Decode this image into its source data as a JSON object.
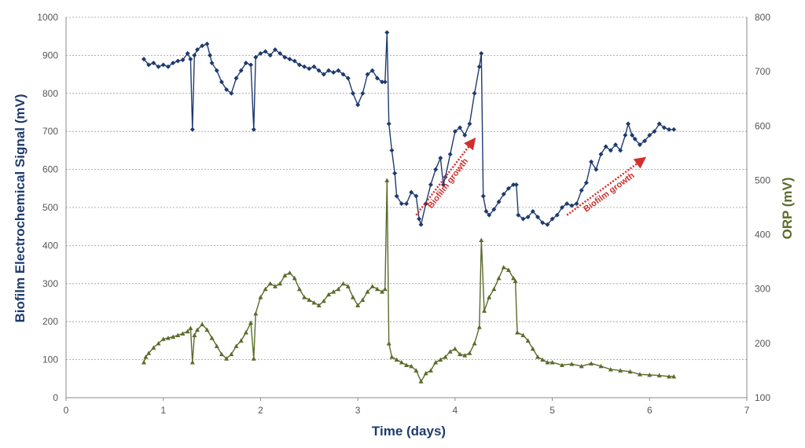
{
  "chart_data": {
    "type": "line",
    "xlabel": "Time (days)",
    "ylabel_left": "Biofilm Electrochemical Signal (mV)",
    "ylabel_right": "ORP (mV)",
    "xlim": [
      0,
      7
    ],
    "ylim_left": [
      0,
      1000
    ],
    "ylim_right": [
      100,
      800
    ],
    "x_ticks": [
      "0",
      "1",
      "2",
      "3",
      "4",
      "5",
      "6",
      "7"
    ],
    "y_left_ticks": [
      "0",
      "100",
      "200",
      "300",
      "400",
      "500",
      "600",
      "700",
      "800",
      "900",
      "1000"
    ],
    "y_right_ticks": [
      "100",
      "200",
      "300",
      "400",
      "500",
      "600",
      "700",
      "800"
    ],
    "grid": "horizontal",
    "colors": {
      "left_series": "#1f3b6e",
      "right_series": "#5b6b2a",
      "annotation": "#d32f2f"
    },
    "annotations": [
      {
        "text": "Biofilm growth",
        "from": [
          3.6,
          480
        ],
        "to": [
          4.2,
          680
        ]
      },
      {
        "text": "Biofilm growth",
        "from": [
          5.15,
          480
        ],
        "to": [
          5.95,
          630
        ]
      }
    ],
    "series": [
      {
        "axis": "left",
        "marker": "diamond",
        "points": [
          [
            0.8,
            890
          ],
          [
            0.85,
            875
          ],
          [
            0.9,
            880
          ],
          [
            0.95,
            870
          ],
          [
            1.0,
            875
          ],
          [
            1.05,
            870
          ],
          [
            1.1,
            880
          ],
          [
            1.15,
            885
          ],
          [
            1.2,
            888
          ],
          [
            1.25,
            905
          ],
          [
            1.28,
            890
          ],
          [
            1.3,
            705
          ],
          [
            1.32,
            900
          ],
          [
            1.35,
            915
          ],
          [
            1.4,
            925
          ],
          [
            1.45,
            930
          ],
          [
            1.48,
            900
          ],
          [
            1.5,
            880
          ],
          [
            1.55,
            860
          ],
          [
            1.6,
            830
          ],
          [
            1.65,
            810
          ],
          [
            1.7,
            800
          ],
          [
            1.75,
            840
          ],
          [
            1.8,
            860
          ],
          [
            1.85,
            880
          ],
          [
            1.9,
            875
          ],
          [
            1.93,
            705
          ],
          [
            1.95,
            895
          ],
          [
            2.0,
            905
          ],
          [
            2.05,
            910
          ],
          [
            2.1,
            900
          ],
          [
            2.15,
            915
          ],
          [
            2.2,
            905
          ],
          [
            2.25,
            895
          ],
          [
            2.3,
            890
          ],
          [
            2.35,
            885
          ],
          [
            2.4,
            875
          ],
          [
            2.45,
            870
          ],
          [
            2.5,
            865
          ],
          [
            2.55,
            870
          ],
          [
            2.6,
            860
          ],
          [
            2.65,
            850
          ],
          [
            2.7,
            860
          ],
          [
            2.75,
            855
          ],
          [
            2.8,
            860
          ],
          [
            2.85,
            850
          ],
          [
            2.9,
            840
          ],
          [
            2.95,
            800
          ],
          [
            3.0,
            770
          ],
          [
            3.05,
            800
          ],
          [
            3.1,
            850
          ],
          [
            3.15,
            860
          ],
          [
            3.2,
            840
          ],
          [
            3.25,
            830
          ],
          [
            3.28,
            830
          ],
          [
            3.3,
            960
          ],
          [
            3.32,
            720
          ],
          [
            3.35,
            650
          ],
          [
            3.38,
            590
          ],
          [
            3.4,
            530
          ],
          [
            3.45,
            510
          ],
          [
            3.5,
            510
          ],
          [
            3.55,
            540
          ],
          [
            3.6,
            530
          ],
          [
            3.63,
            470
          ],
          [
            3.65,
            455
          ],
          [
            3.7,
            510
          ],
          [
            3.75,
            560
          ],
          [
            3.8,
            600
          ],
          [
            3.85,
            630
          ],
          [
            3.88,
            560
          ],
          [
            3.9,
            580
          ],
          [
            3.95,
            640
          ],
          [
            4.0,
            700
          ],
          [
            4.05,
            710
          ],
          [
            4.1,
            690
          ],
          [
            4.15,
            720
          ],
          [
            4.2,
            800
          ],
          [
            4.25,
            870
          ],
          [
            4.27,
            905
          ],
          [
            4.29,
            530
          ],
          [
            4.32,
            490
          ],
          [
            4.35,
            480
          ],
          [
            4.4,
            495
          ],
          [
            4.45,
            515
          ],
          [
            4.5,
            535
          ],
          [
            4.55,
            550
          ],
          [
            4.6,
            560
          ],
          [
            4.63,
            560
          ],
          [
            4.65,
            480
          ],
          [
            4.7,
            470
          ],
          [
            4.75,
            475
          ],
          [
            4.8,
            490
          ],
          [
            4.85,
            475
          ],
          [
            4.9,
            460
          ],
          [
            4.95,
            455
          ],
          [
            5.0,
            470
          ],
          [
            5.05,
            480
          ],
          [
            5.1,
            500
          ],
          [
            5.15,
            510
          ],
          [
            5.2,
            505
          ],
          [
            5.25,
            510
          ],
          [
            5.3,
            545
          ],
          [
            5.35,
            565
          ],
          [
            5.4,
            620
          ],
          [
            5.45,
            600
          ],
          [
            5.5,
            640
          ],
          [
            5.55,
            660
          ],
          [
            5.6,
            650
          ],
          [
            5.65,
            665
          ],
          [
            5.7,
            650
          ],
          [
            5.75,
            690
          ],
          [
            5.78,
            720
          ],
          [
            5.82,
            690
          ],
          [
            5.85,
            680
          ],
          [
            5.9,
            665
          ],
          [
            5.95,
            675
          ],
          [
            6.0,
            690
          ],
          [
            6.05,
            700
          ],
          [
            6.1,
            720
          ],
          [
            6.15,
            710
          ],
          [
            6.2,
            705
          ],
          [
            6.25,
            705
          ]
        ]
      },
      {
        "axis": "right",
        "marker": "triangle",
        "points": [
          [
            0.8,
            165
          ],
          [
            0.82,
            175
          ],
          [
            0.85,
            182
          ],
          [
            0.9,
            192
          ],
          [
            0.95,
            200
          ],
          [
            1.0,
            208
          ],
          [
            1.05,
            210
          ],
          [
            1.1,
            212
          ],
          [
            1.15,
            215
          ],
          [
            1.2,
            218
          ],
          [
            1.25,
            222
          ],
          [
            1.28,
            228
          ],
          [
            1.3,
            165
          ],
          [
            1.32,
            215
          ],
          [
            1.35,
            225
          ],
          [
            1.4,
            235
          ],
          [
            1.45,
            225
          ],
          [
            1.5,
            210
          ],
          [
            1.55,
            195
          ],
          [
            1.6,
            180
          ],
          [
            1.65,
            172
          ],
          [
            1.7,
            180
          ],
          [
            1.75,
            195
          ],
          [
            1.8,
            205
          ],
          [
            1.85,
            220
          ],
          [
            1.9,
            238
          ],
          [
            1.93,
            172
          ],
          [
            1.95,
            255
          ],
          [
            2.0,
            285
          ],
          [
            2.05,
            300
          ],
          [
            2.1,
            310
          ],
          [
            2.15,
            305
          ],
          [
            2.2,
            310
          ],
          [
            2.25,
            325
          ],
          [
            2.3,
            330
          ],
          [
            2.35,
            320
          ],
          [
            2.4,
            300
          ],
          [
            2.45,
            285
          ],
          [
            2.5,
            280
          ],
          [
            2.55,
            275
          ],
          [
            2.6,
            270
          ],
          [
            2.65,
            278
          ],
          [
            2.7,
            290
          ],
          [
            2.75,
            295
          ],
          [
            2.8,
            300
          ],
          [
            2.85,
            310
          ],
          [
            2.9,
            305
          ],
          [
            2.95,
            285
          ],
          [
            3.0,
            270
          ],
          [
            3.05,
            280
          ],
          [
            3.1,
            295
          ],
          [
            3.15,
            305
          ],
          [
            3.2,
            300
          ],
          [
            3.25,
            295
          ],
          [
            3.28,
            300
          ],
          [
            3.3,
            500
          ],
          [
            3.32,
            200
          ],
          [
            3.35,
            175
          ],
          [
            3.4,
            170
          ],
          [
            3.45,
            165
          ],
          [
            3.5,
            160
          ],
          [
            3.55,
            158
          ],
          [
            3.6,
            150
          ],
          [
            3.65,
            130
          ],
          [
            3.7,
            145
          ],
          [
            3.75,
            150
          ],
          [
            3.8,
            165
          ],
          [
            3.85,
            170
          ],
          [
            3.9,
            175
          ],
          [
            3.95,
            185
          ],
          [
            4.0,
            190
          ],
          [
            4.05,
            180
          ],
          [
            4.1,
            178
          ],
          [
            4.15,
            182
          ],
          [
            4.2,
            200
          ],
          [
            4.25,
            230
          ],
          [
            4.27,
            390
          ],
          [
            4.3,
            260
          ],
          [
            4.35,
            285
          ],
          [
            4.4,
            300
          ],
          [
            4.45,
            320
          ],
          [
            4.5,
            340
          ],
          [
            4.55,
            335
          ],
          [
            4.6,
            320
          ],
          [
            4.62,
            315
          ],
          [
            4.64,
            220
          ],
          [
            4.7,
            215
          ],
          [
            4.75,
            205
          ],
          [
            4.8,
            190
          ],
          [
            4.85,
            175
          ],
          [
            4.9,
            170
          ],
          [
            4.95,
            165
          ],
          [
            5.0,
            165
          ],
          [
            5.1,
            160
          ],
          [
            5.2,
            162
          ],
          [
            5.3,
            158
          ],
          [
            5.4,
            163
          ],
          [
            5.5,
            158
          ],
          [
            5.6,
            152
          ],
          [
            5.7,
            150
          ],
          [
            5.8,
            148
          ],
          [
            5.9,
            143
          ],
          [
            6.0,
            142
          ],
          [
            6.1,
            141
          ],
          [
            6.2,
            139
          ],
          [
            6.25,
            139
          ]
        ]
      }
    ]
  }
}
